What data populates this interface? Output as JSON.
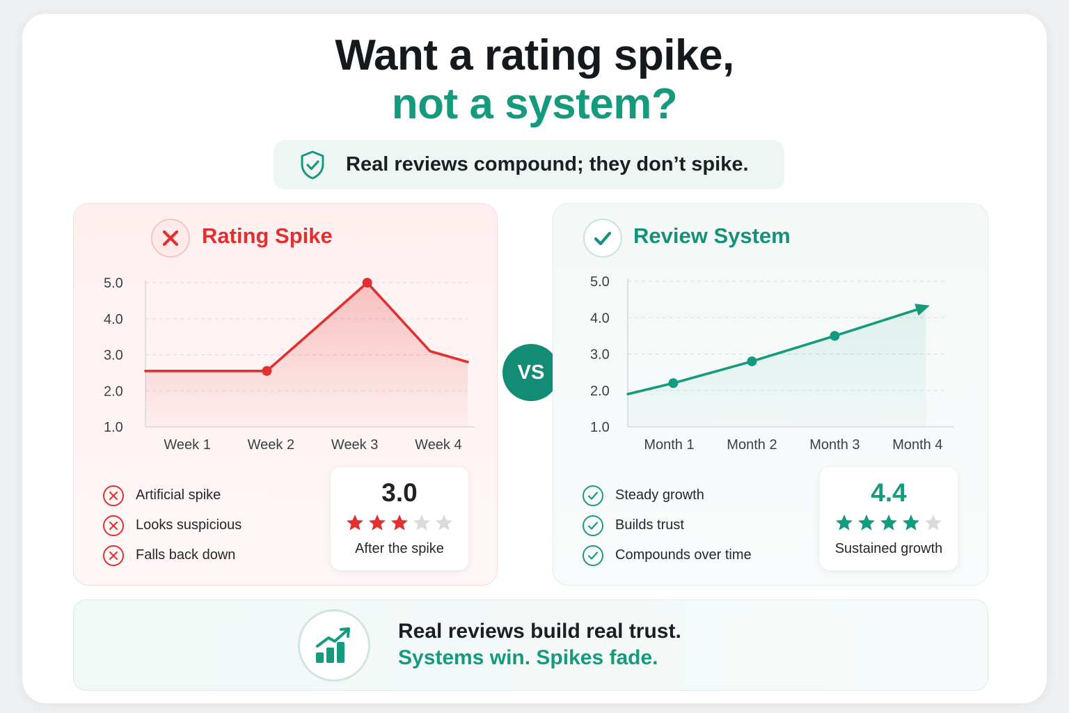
{
  "header": {
    "title_line1": "Want a rating spike,",
    "title_line2": "not a system?",
    "subtitle": "Real reviews compound; they don’t spike.",
    "subtitle_icon": "shield-check-icon"
  },
  "vs_label": "VS",
  "colors": {
    "red": "#e0302f",
    "green": "#159a7e",
    "green_dark": "#138c76"
  },
  "left_panel": {
    "title": "Rating Spike",
    "icon": "x-circle-icon",
    "bullets": [
      "Artificial spike",
      "Looks suspicious",
      "Falls back down"
    ],
    "score": "3.0",
    "stars_filled": 3,
    "stars_total": 5,
    "score_caption": "After the spike"
  },
  "right_panel": {
    "title": "Review System",
    "icon": "check-circle-icon",
    "bullets": [
      "Steady growth",
      "Builds trust",
      "Compounds over time"
    ],
    "score": "4.4",
    "stars_filled": 4,
    "stars_total": 5,
    "score_caption": "Sustained growth"
  },
  "footer": {
    "line1": "Real reviews build real trust.",
    "line2": "Systems win. Spikes fade.",
    "icon": "bar-chart-growth-icon"
  },
  "chart_data": [
    {
      "type": "line",
      "title": "Rating Spike",
      "categories": [
        "Week 1",
        "Week 2",
        "Week 3",
        "Week 4"
      ],
      "y_ticks": [
        "1.0",
        "2.0",
        "3.0",
        "4.0",
        "5.0"
      ],
      "ylim": [
        1.0,
        5.0
      ],
      "xlim": [
        0.5,
        4.35
      ],
      "grid": true,
      "series": [
        {
          "points": [
            [
              0.5,
              2.55
            ],
            [
              1.95,
              2.55
            ],
            [
              3.15,
              5.0
            ],
            [
              3.9,
              3.1
            ],
            [
              4.35,
              2.8
            ]
          ],
          "markers": [
            [
              1.95,
              2.55
            ],
            [
              3.15,
              5.0
            ]
          ]
        }
      ]
    },
    {
      "type": "line",
      "title": "Review System",
      "categories": [
        "Month 1",
        "Month 2",
        "Month 3",
        "Month 4"
      ],
      "y_ticks": [
        "1.0",
        "2.0",
        "3.0",
        "4.0",
        "5.0"
      ],
      "ylim": [
        1.0,
        5.0
      ],
      "xlim": [
        0.5,
        4.35
      ],
      "grid": true,
      "series": [
        {
          "points": [
            [
              0.5,
              1.9
            ],
            [
              1.05,
              2.2
            ],
            [
              2.0,
              2.8
            ],
            [
              3.0,
              3.5
            ],
            [
              4.1,
              4.3
            ]
          ],
          "markers": [
            [
              1.05,
              2.2
            ],
            [
              2.0,
              2.8
            ],
            [
              3.0,
              3.5
            ]
          ],
          "arrow_end": true
        }
      ]
    }
  ]
}
